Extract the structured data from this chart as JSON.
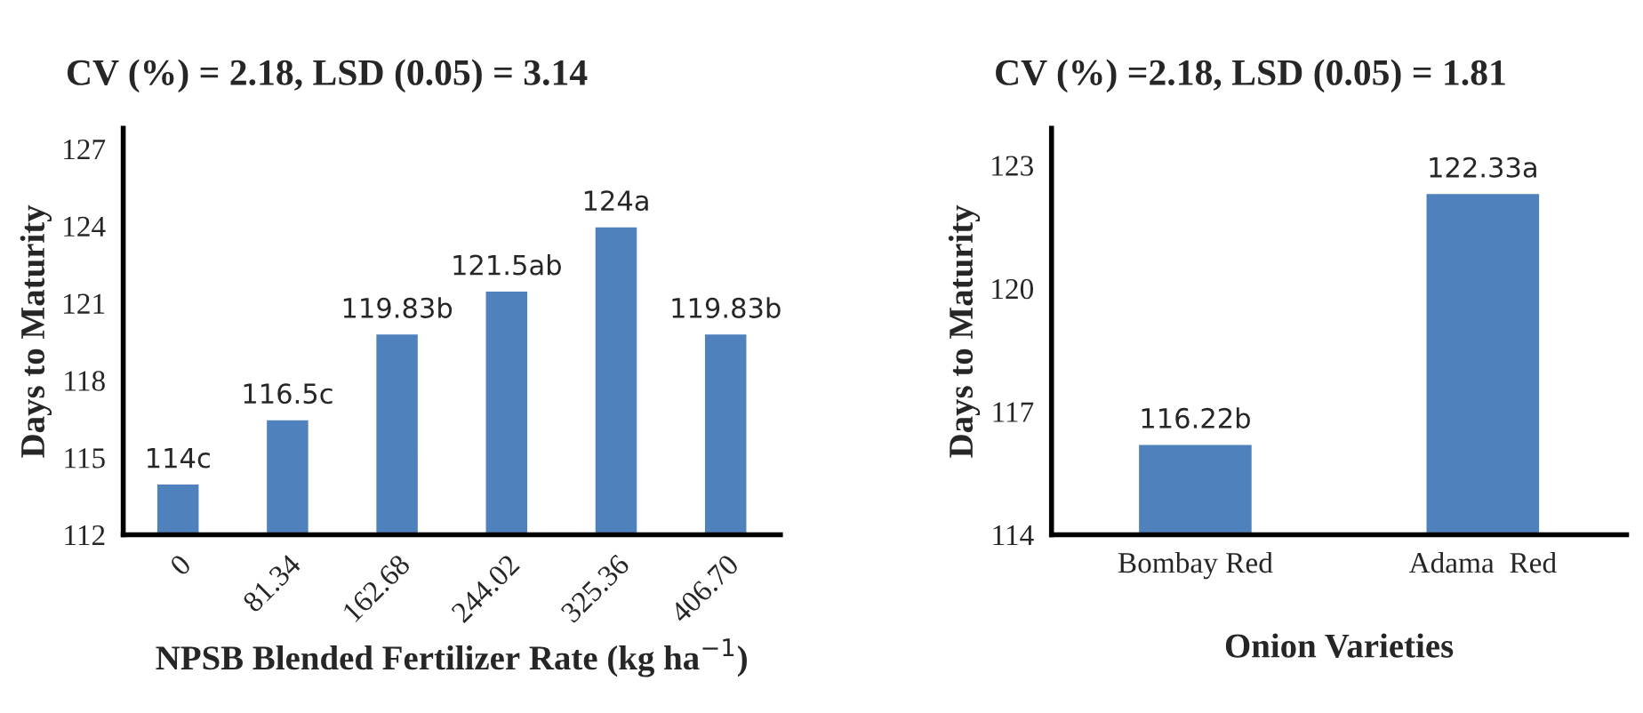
{
  "chart_data": [
    {
      "type": "bar",
      "title": "CV (%) = 2.18, LSD (0.05) = 3.14",
      "xlabel": "NPSB Blended Fertilizer Rate (kg ha$^{−1}$)",
      "ylabel": "Days to Maturity",
      "categories": [
        "0",
        "81.34",
        "162.68",
        "244.02",
        "325.36",
        "406.70"
      ],
      "values": [
        114,
        116.5,
        119.83,
        121.5,
        124,
        119.83
      ],
      "color": "#4f81bd",
      "value_labels": [
        "114c",
        "116.5c",
        "119.83b",
        "121.5ab",
        "124a",
        "119.83b"
      ],
      "ylim": [
        112,
        127.8
      ],
      "yticks": [
        112,
        115,
        118,
        121,
        124,
        127
      ],
      "grid": false,
      "legend": false
    },
    {
      "type": "bar",
      "title": "CV (%) =2.18, LSD (0.05) = 1.81",
      "xlabel": "Onion Varieties",
      "ylabel": "Days to Maturity",
      "categories": [
        "Bombay Red",
        "Adama  Red"
      ],
      "values": [
        116.22,
        122.33
      ],
      "color": "#4f81bd",
      "value_labels": [
        "116.22b",
        "122.33a"
      ],
      "ylim": [
        114,
        123.9
      ],
      "yticks": [
        114,
        117,
        120,
        123
      ],
      "grid": false,
      "legend": false
    }
  ]
}
